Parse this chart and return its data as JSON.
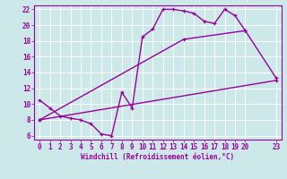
{
  "background_color": "#cce8e8",
  "grid_color": "#ffffff",
  "line_color": "#990099",
  "xlabel": "Windchill (Refroidissement éolien,°C)",
  "xlim": [
    -0.5,
    23.5
  ],
  "ylim": [
    5.5,
    22.5
  ],
  "yticks": [
    6,
    8,
    10,
    12,
    14,
    16,
    18,
    20,
    22
  ],
  "xticks": [
    0,
    1,
    2,
    3,
    4,
    5,
    6,
    7,
    8,
    9,
    10,
    11,
    12,
    13,
    14,
    15,
    16,
    17,
    18,
    19,
    20,
    23
  ],
  "xtick_labels": [
    "0",
    "1",
    "2",
    "3",
    "4",
    "5",
    "6",
    "7",
    "8",
    "9",
    "10",
    "11",
    "12",
    "13",
    "14",
    "15",
    "16",
    "17",
    "18",
    "19",
    "20",
    "23"
  ],
  "series": [
    {
      "x": [
        0,
        1,
        2,
        3,
        4,
        5,
        6,
        7,
        8,
        9,
        10,
        11,
        12,
        13,
        14,
        15,
        16,
        17,
        18,
        19,
        20
      ],
      "y": [
        10.5,
        9.5,
        8.5,
        8.2,
        8.0,
        7.5,
        6.2,
        6.0,
        11.5,
        9.5,
        18.5,
        19.5,
        22.0,
        22.0,
        21.8,
        21.5,
        20.5,
        20.2,
        22.0,
        21.2,
        19.3
      ]
    },
    {
      "x": [
        0,
        23
      ],
      "y": [
        8.0,
        13.0
      ]
    },
    {
      "x": [
        0,
        14,
        20,
        23
      ],
      "y": [
        8.0,
        18.2,
        19.3,
        13.3
      ]
    }
  ],
  "figsize": [
    3.2,
    2.0
  ],
  "dpi": 100,
  "font_size": 5.5,
  "line_width": 1.0,
  "marker_size": 3.5
}
